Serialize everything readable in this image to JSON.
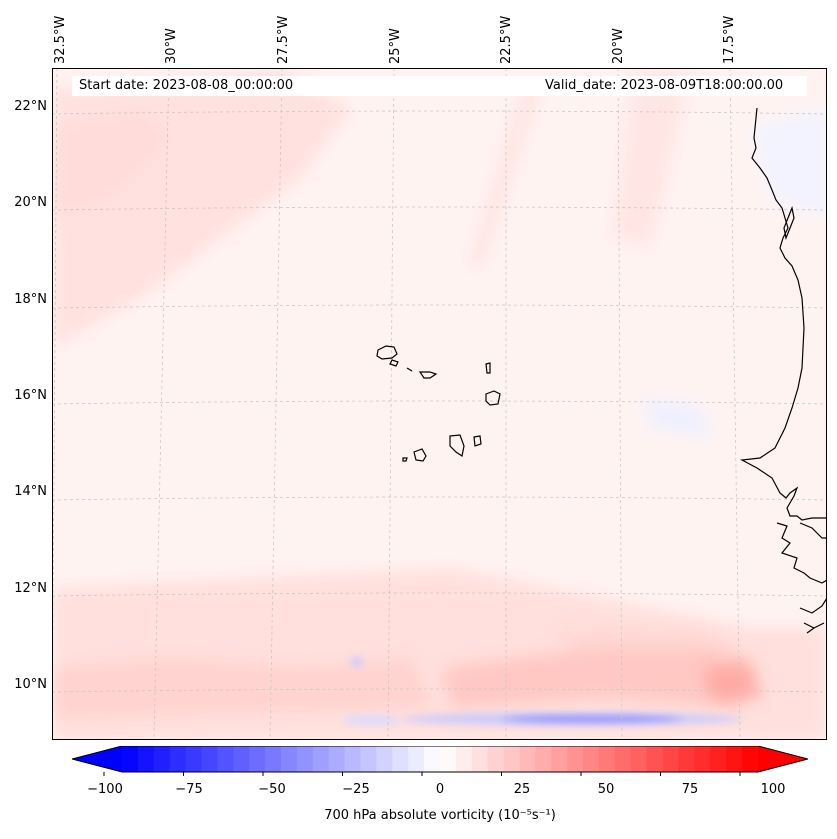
{
  "header": {
    "start_label": "Start date: 2023-08-08_00:00:00",
    "valid_label": "Valid_date: 2023-08-09T18:00:00.00"
  },
  "map": {
    "longitude_labels": [
      "32.5°W",
      "30°W",
      "27.5°W",
      "25°W",
      "22.5°W",
      "20°W",
      "17.5°W"
    ],
    "latitude_labels": [
      "22°N",
      "20°N",
      "18°N",
      "16°N",
      "14°N",
      "12°N",
      "10°N"
    ],
    "variable": "700 hPa absolute vorticity"
  },
  "colorbar": {
    "ticks": [
      "−100",
      "−75",
      "−50",
      "−25",
      "0",
      "25",
      "50",
      "75",
      "100"
    ],
    "title": "700 hPa absolute vorticity (10⁻⁵s⁻¹)",
    "vmin": -100,
    "vmax": 100,
    "levels": 40,
    "low_color": "#0000ff",
    "mid_color": "#ffffff",
    "high_color": "#ff0000"
  }
}
